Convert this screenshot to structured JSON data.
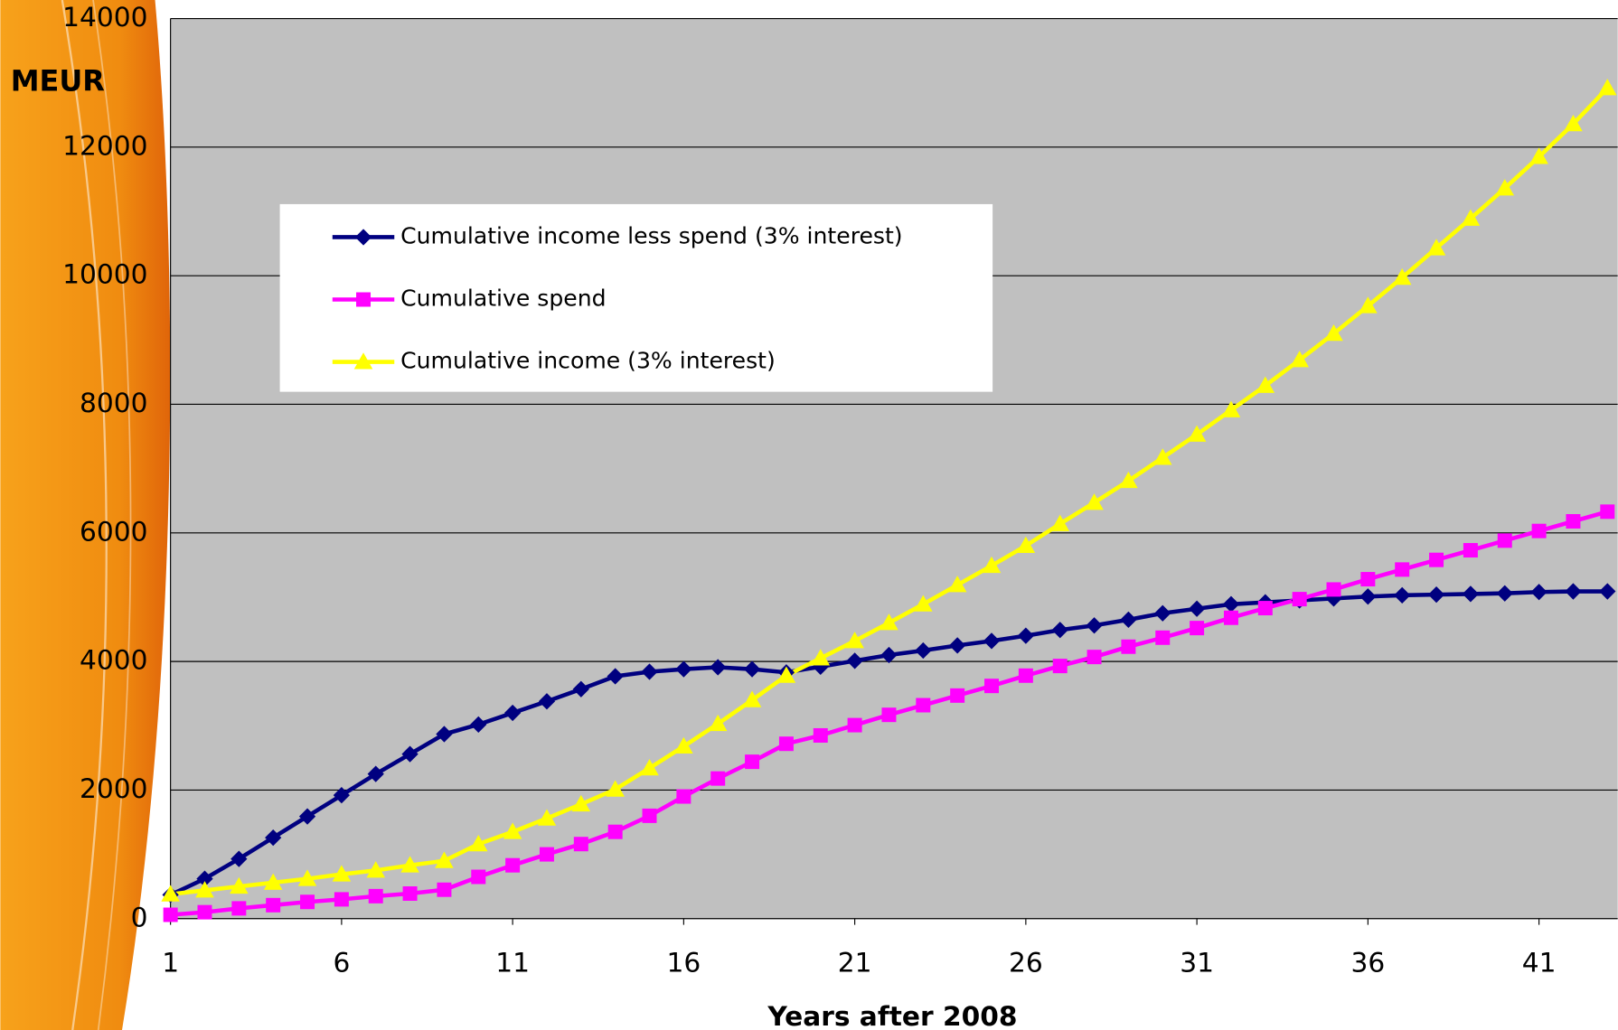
{
  "chart_data": {
    "type": "line",
    "y_label": "MEUR",
    "x_label": "Years after 2008",
    "x": [
      1,
      2,
      3,
      4,
      5,
      6,
      7,
      8,
      9,
      10,
      11,
      12,
      13,
      14,
      15,
      16,
      17,
      18,
      19,
      20,
      21,
      22,
      23,
      24,
      25,
      26,
      27,
      28,
      29,
      30,
      31,
      32,
      33,
      34,
      35,
      36,
      37,
      38,
      39,
      40,
      41,
      42,
      43
    ],
    "series": [
      {
        "name": "Cumulative income less spend (3% interest)",
        "color": "#000080",
        "marker": "diamond",
        "values": [
          370,
          620,
          930,
          1260,
          1590,
          1920,
          2250,
          2560,
          2870,
          3020,
          3200,
          3380,
          3570,
          3770,
          3840,
          3880,
          3910,
          3880,
          3830,
          3920,
          4010,
          4100,
          4170,
          4250,
          4320,
          4400,
          4490,
          4560,
          4650,
          4750,
          4820,
          4890,
          4920,
          4950,
          4980,
          5010,
          5030,
          5040,
          5050,
          5060,
          5080,
          5090,
          5090
        ]
      },
      {
        "name": "Cumulative spend",
        "color": "#ff00ff",
        "marker": "square",
        "values": [
          60,
          100,
          160,
          210,
          260,
          300,
          350,
          390,
          450,
          650,
          830,
          1000,
          1160,
          1350,
          1600,
          1900,
          2180,
          2440,
          2720,
          2850,
          3010,
          3170,
          3320,
          3470,
          3620,
          3780,
          3930,
          4070,
          4230,
          4370,
          4520,
          4680,
          4830,
          4970,
          5120,
          5280,
          5430,
          5580,
          5730,
          5880,
          6030,
          6180,
          6330
        ]
      },
      {
        "name": "Cumulative income (3% interest)",
        "color": "#ffff00",
        "marker": "triangle",
        "values": [
          380,
          440,
          500,
          560,
          620,
          690,
          750,
          830,
          900,
          1160,
          1350,
          1560,
          1780,
          2010,
          2340,
          2680,
          3030,
          3400,
          3780,
          4050,
          4320,
          4600,
          4890,
          5190,
          5490,
          5800,
          6140,
          6470,
          6810,
          7170,
          7530,
          7910,
          8290,
          8690,
          9100,
          9530,
          9970,
          10430,
          10890,
          11360,
          11850,
          12360,
          12920
        ]
      }
    ],
    "xlim": [
      1,
      43.3
    ],
    "xticks": [
      1,
      6,
      11,
      16,
      21,
      26,
      31,
      36,
      41
    ],
    "ylim": [
      0,
      14000
    ],
    "yticks": [
      0,
      2000,
      4000,
      6000,
      8000,
      10000,
      12000,
      14000
    ],
    "grid": true
  }
}
